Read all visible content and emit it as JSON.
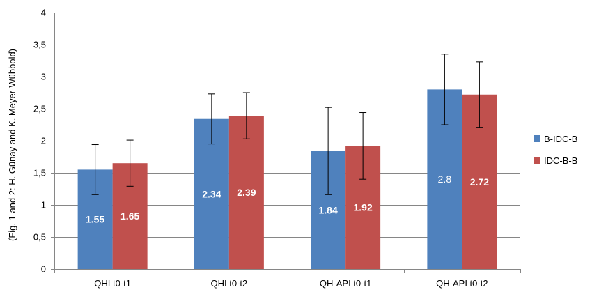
{
  "chart_data": {
    "type": "bar",
    "title": "",
    "xlabel": "",
    "ylabel": "(Fig. 1 and 2: H. Günay and K. Meyer-Wübbold)",
    "ylim": [
      0,
      4
    ],
    "yticks": [
      "0",
      "0,5",
      "1",
      "1,5",
      "2",
      "2,5",
      "3",
      "3,5",
      "4"
    ],
    "grid": true,
    "legend_position": "right",
    "categories": [
      "QHI t0-t1",
      "QHI t0-t2",
      "QH-API t0-t1",
      "QH-API t0-t2"
    ],
    "series": [
      {
        "name": "B-IDC-B",
        "color": "#4f81bd",
        "values": [
          1.55,
          2.34,
          1.84,
          2.8
        ],
        "labels": [
          "1.55",
          "2.34",
          "1.84",
          "2.8"
        ],
        "label_bold": [
          true,
          true,
          true,
          false
        ],
        "error_low": [
          1.16,
          1.95,
          1.16,
          2.25
        ],
        "error_high": [
          1.94,
          2.73,
          2.52,
          3.35
        ]
      },
      {
        "name": "IDC-B-B",
        "color": "#c0504d",
        "values": [
          1.65,
          2.39,
          1.92,
          2.72
        ],
        "labels": [
          "1.65",
          "2.39",
          "1.92",
          "2.72"
        ],
        "label_bold": [
          true,
          true,
          true,
          true
        ],
        "error_low": [
          1.29,
          2.03,
          1.4,
          2.21
        ],
        "error_high": [
          2.01,
          2.75,
          2.44,
          3.23
        ]
      }
    ]
  }
}
